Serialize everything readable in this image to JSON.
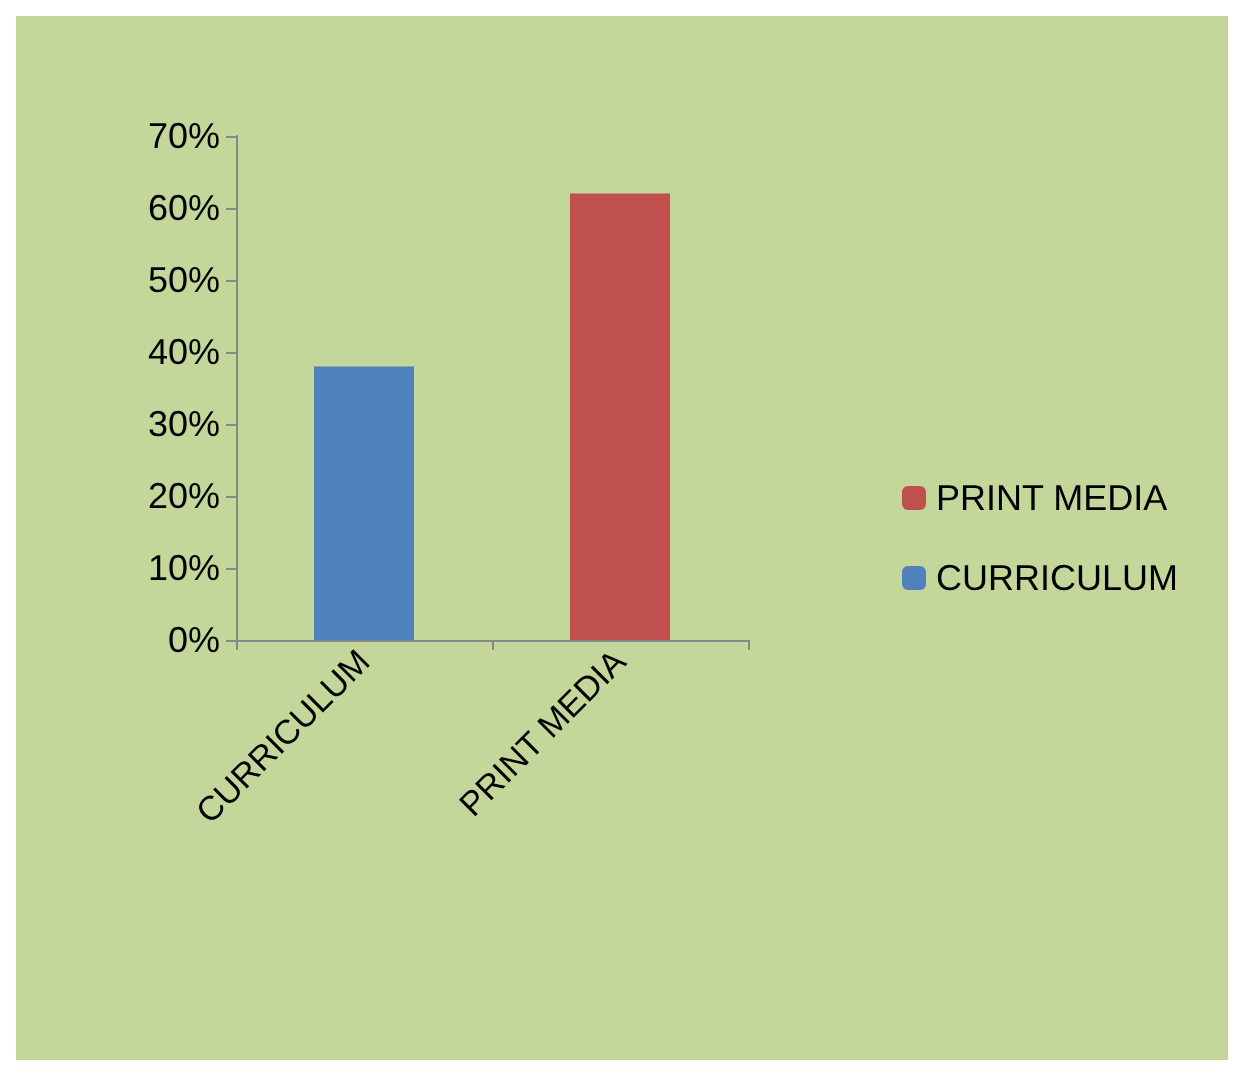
{
  "chart_data": {
    "type": "bar",
    "categories": [
      "CURRICULUM",
      "PRINT MEDIA"
    ],
    "series": [
      {
        "name": "PRINT MEDIA",
        "color": "#c0504d",
        "values": [
          null,
          62
        ]
      },
      {
        "name": "CURRICULUM",
        "color": "#4f81bd",
        "values": [
          38,
          null
        ]
      }
    ],
    "ylim": [
      0,
      70
    ],
    "yticks": [
      {
        "value": 0,
        "label": "0%"
      },
      {
        "value": 10,
        "label": "10%"
      },
      {
        "value": 20,
        "label": "20%"
      },
      {
        "value": 30,
        "label": "30%"
      },
      {
        "value": 40,
        "label": "40%"
      },
      {
        "value": 50,
        "label": "50%"
      },
      {
        "value": 60,
        "label": "60%"
      },
      {
        "value": 70,
        "label": "70%"
      }
    ],
    "grid": false,
    "legend": "right"
  }
}
